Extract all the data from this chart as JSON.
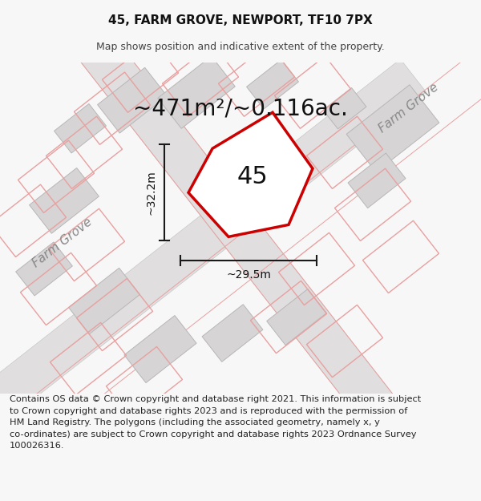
{
  "title_line1": "45, FARM GROVE, NEWPORT, TF10 7PX",
  "title_line2": "Map shows position and indicative extent of the property.",
  "area_text": "~471m²/~0.116ac.",
  "label_45": "45",
  "dim_vertical": "~32.2m",
  "dim_horizontal": "~29.5m",
  "road_label_bl": "Farm Grove",
  "road_label_tr": "Farm Grove",
  "footer_text": "Contains OS data © Crown copyright and database right 2021. This information is subject\nto Crown copyright and database rights 2023 and is reproduced with the permission of\nHM Land Registry. The polygons (including the associated geometry, namely x, y\nco-ordinates) are subject to Crown copyright and database rights 2023 Ordnance Survey\n100026316.",
  "bg_color": "#f7f7f7",
  "map_bg": "#eeecec",
  "road_fill": "#e0dede",
  "road_edge": "#c8c8c8",
  "building_fill": "#d6d4d4",
  "building_edge": "#b8b6b6",
  "plot_line_color": "#e8a0a0",
  "property_outline": "#cc0000",
  "property_fill": "#ffffff",
  "dim_line_color": "#1a1a1a",
  "text_dark": "#111111",
  "text_gray": "#888888",
  "title_fontsize": 11,
  "subtitle_fontsize": 9,
  "area_fontsize": 20,
  "label_fontsize": 22,
  "dim_fontsize": 10,
  "road_label_fontsize": 11,
  "footer_fontsize": 8.2
}
